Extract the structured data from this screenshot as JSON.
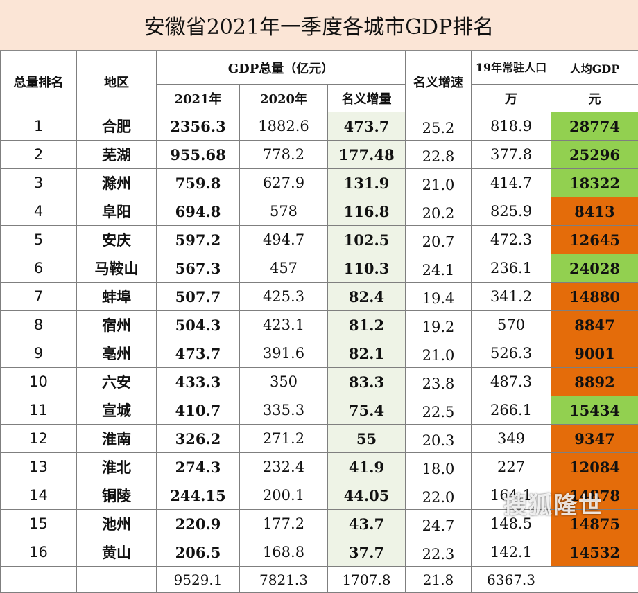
{
  "title": "安徽省2021年一季度各城市GDP排名",
  "headers": {
    "rank": "总量排名",
    "region": "地区",
    "gdp_total": "GDP总量（亿元）",
    "y2021": "2021年",
    "y2020": "2020年",
    "increase": "名义增量",
    "growth": "名义增速",
    "population": "19年常驻人口",
    "population_unit": "万",
    "per_capita": "人均GDP",
    "per_capita_unit": "元"
  },
  "rows": [
    {
      "rank": "1",
      "region": "合肥",
      "g2021": "2356.3",
      "g2020": "1882.6",
      "inc": "473.7",
      "rate": "25.2",
      "pop": "818.9",
      "pc": "28774",
      "pc_color": "green"
    },
    {
      "rank": "2",
      "region": "芜湖",
      "g2021": "955.68",
      "g2020": "778.2",
      "inc": "177.48",
      "rate": "22.8",
      "pop": "377.8",
      "pc": "25296",
      "pc_color": "green"
    },
    {
      "rank": "3",
      "region": "滁州",
      "g2021": "759.8",
      "g2020": "627.9",
      "inc": "131.9",
      "rate": "21.0",
      "pop": "414.7",
      "pc": "18322",
      "pc_color": "green"
    },
    {
      "rank": "4",
      "region": "阜阳",
      "g2021": "694.8",
      "g2020": "578",
      "inc": "116.8",
      "rate": "20.2",
      "pop": "825.9",
      "pc": "8413",
      "pc_color": "orange"
    },
    {
      "rank": "5",
      "region": "安庆",
      "g2021": "597.2",
      "g2020": "494.7",
      "inc": "102.5",
      "rate": "20.7",
      "pop": "472.3",
      "pc": "12645",
      "pc_color": "orange"
    },
    {
      "rank": "6",
      "region": "马鞍山",
      "g2021": "567.3",
      "g2020": "457",
      "inc": "110.3",
      "rate": "24.1",
      "pop": "236.1",
      "pc": "24028",
      "pc_color": "green"
    },
    {
      "rank": "7",
      "region": "蚌埠",
      "g2021": "507.7",
      "g2020": "425.3",
      "inc": "82.4",
      "rate": "19.4",
      "pop": "341.2",
      "pc": "14880",
      "pc_color": "orange"
    },
    {
      "rank": "8",
      "region": "宿州",
      "g2021": "504.3",
      "g2020": "423.1",
      "inc": "81.2",
      "rate": "19.2",
      "pop": "570",
      "pc": "8847",
      "pc_color": "orange"
    },
    {
      "rank": "9",
      "region": "亳州",
      "g2021": "473.7",
      "g2020": "391.6",
      "inc": "82.1",
      "rate": "21.0",
      "pop": "526.3",
      "pc": "9001",
      "pc_color": "orange"
    },
    {
      "rank": "10",
      "region": "六安",
      "g2021": "433.3",
      "g2020": "350",
      "inc": "83.3",
      "rate": "23.8",
      "pop": "487.3",
      "pc": "8892",
      "pc_color": "orange"
    },
    {
      "rank": "11",
      "region": "宣城",
      "g2021": "410.7",
      "g2020": "335.3",
      "inc": "75.4",
      "rate": "22.5",
      "pop": "266.1",
      "pc": "15434",
      "pc_color": "green"
    },
    {
      "rank": "12",
      "region": "淮南",
      "g2021": "326.2",
      "g2020": "271.2",
      "inc": "55",
      "rate": "20.3",
      "pop": "349",
      "pc": "9347",
      "pc_color": "orange"
    },
    {
      "rank": "13",
      "region": "淮北",
      "g2021": "274.3",
      "g2020": "232.4",
      "inc": "41.9",
      "rate": "18.0",
      "pop": "227",
      "pc": "12084",
      "pc_color": "orange"
    },
    {
      "rank": "14",
      "region": "铜陵",
      "g2021": "244.15",
      "g2020": "200.1",
      "inc": "44.05",
      "rate": "22.0",
      "pop": "164.1",
      "pc": "14878",
      "pc_color": "orange"
    },
    {
      "rank": "15",
      "region": "池州",
      "g2021": "220.9",
      "g2020": "177.2",
      "inc": "43.7",
      "rate": "24.7",
      "pop": "148.5",
      "pc": "14875",
      "pc_color": "orange"
    },
    {
      "rank": "16",
      "region": "黄山",
      "g2021": "206.5",
      "g2020": "168.8",
      "inc": "37.7",
      "rate": "22.3",
      "pop": "142.1",
      "pc": "14532",
      "pc_color": "orange"
    }
  ],
  "total": {
    "rank": "",
    "region": "",
    "g2021": "9529.1",
    "g2020": "7821.3",
    "inc": "1707.8",
    "rate": "21.8",
    "pop": "6367.3",
    "pc": ""
  },
  "colors": {
    "title_bg": "#fbe5d6",
    "green": "#92d050",
    "orange": "#e46c0a",
    "increase_bg": "#eef3e6"
  },
  "watermark": "搜狐隆世"
}
